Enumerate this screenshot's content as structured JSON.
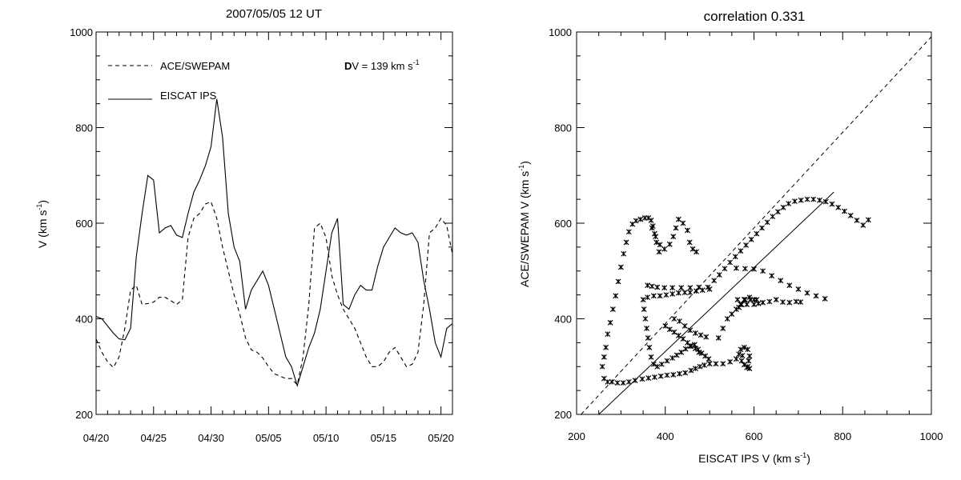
{
  "chart_data": [
    {
      "type": "line",
      "title": "2007/05/05 12 UT",
      "xlabel": "",
      "ylabel": "V (km s",
      "ylabel_sup": "-1",
      "ylabel_end": ")",
      "xlim": [
        "2007-04-20",
        "2007-05-21"
      ],
      "ylim": [
        200,
        1000
      ],
      "x_ticks": [
        "04/20",
        "04/25",
        "04/30",
        "05/05",
        "05/10",
        "05/15",
        "05/20"
      ],
      "y_ticks": [
        "200",
        "400",
        "600",
        "800",
        "1000"
      ],
      "grid": false,
      "legend_position": "top-left",
      "annotation": {
        "bold": "D",
        "text": "V = 139 km s",
        "sup": "-1"
      },
      "series": [
        {
          "name": "ACE/SWEPAM",
          "style": "dashed",
          "x": [
            "2007-04-20T00",
            "2007-04-20T12",
            "2007-04-21T00",
            "2007-04-21T12",
            "2007-04-22T00",
            "2007-04-22T12",
            "2007-04-23T00",
            "2007-04-23T12",
            "2007-04-24T00",
            "2007-04-24T12",
            "2007-04-25T00",
            "2007-04-25T12",
            "2007-04-26T00",
            "2007-04-26T12",
            "2007-04-27T00",
            "2007-04-27T12",
            "2007-04-28T00",
            "2007-04-28T12",
            "2007-04-29T00",
            "2007-04-29T12",
            "2007-04-30T00",
            "2007-04-30T12",
            "2007-05-01T00",
            "2007-05-01T12",
            "2007-05-02T00",
            "2007-05-02T12",
            "2007-05-03T00",
            "2007-05-03T12",
            "2007-05-04T00",
            "2007-05-04T12",
            "2007-05-05T00",
            "2007-05-05T12",
            "2007-05-06T00",
            "2007-05-06T12",
            "2007-05-07T00",
            "2007-05-07T12",
            "2007-05-08T00",
            "2007-05-08T12",
            "2007-05-09T00",
            "2007-05-09T12",
            "2007-05-10T00",
            "2007-05-10T12",
            "2007-05-11T00",
            "2007-05-11T12",
            "2007-05-12T00",
            "2007-05-12T12",
            "2007-05-13T00",
            "2007-05-13T12",
            "2007-05-14T00",
            "2007-05-14T12",
            "2007-05-15T00",
            "2007-05-15T12",
            "2007-05-16T00",
            "2007-05-16T12",
            "2007-05-17T00",
            "2007-05-17T12",
            "2007-05-18T00",
            "2007-05-18T12",
            "2007-05-19T00",
            "2007-05-19T12",
            "2007-05-20T00",
            "2007-05-20T12",
            "2007-05-21T00"
          ],
          "y": [
            358,
            330,
            310,
            298,
            320,
            380,
            460,
            470,
            430,
            432,
            435,
            445,
            445,
            438,
            430,
            440,
            570,
            610,
            620,
            640,
            645,
            610,
            550,
            500,
            450,
            410,
            360,
            335,
            330,
            318,
            300,
            285,
            280,
            275,
            275,
            262,
            320,
            430,
            590,
            600,
            570,
            490,
            450,
            420,
            400,
            380,
            350,
            320,
            300,
            300,
            310,
            330,
            340,
            320,
            300,
            305,
            330,
            430,
            580,
            590,
            610,
            595,
            535
          ]
        },
        {
          "name": "EISCAT IPS",
          "style": "solid",
          "x": [
            "2007-04-20T00",
            "2007-04-20T12",
            "2007-04-21T00",
            "2007-04-21T12",
            "2007-04-22T00",
            "2007-04-22T12",
            "2007-04-23T00",
            "2007-04-23T12",
            "2007-04-24T00",
            "2007-04-24T12",
            "2007-04-25T00",
            "2007-04-25T12",
            "2007-04-26T00",
            "2007-04-26T12",
            "2007-04-27T00",
            "2007-04-27T12",
            "2007-04-28T00",
            "2007-04-28T12",
            "2007-04-29T00",
            "2007-04-29T12",
            "2007-04-30T00",
            "2007-04-30T12",
            "2007-05-01T00",
            "2007-05-01T12",
            "2007-05-02T00",
            "2007-05-02T12",
            "2007-05-03T00",
            "2007-05-03T12",
            "2007-05-04T00",
            "2007-05-04T12",
            "2007-05-05T00",
            "2007-05-05T12",
            "2007-05-06T00",
            "2007-05-06T12",
            "2007-05-07T00",
            "2007-05-07T12",
            "2007-05-08T00",
            "2007-05-08T12",
            "2007-05-09T00",
            "2007-05-09T12",
            "2007-05-10T00",
            "2007-05-10T12",
            "2007-05-11T00",
            "2007-05-11T12",
            "2007-05-12T00",
            "2007-05-12T12",
            "2007-05-13T00",
            "2007-05-13T12",
            "2007-05-14T00",
            "2007-05-14T12",
            "2007-05-15T00",
            "2007-05-15T12",
            "2007-05-16T00",
            "2007-05-16T12",
            "2007-05-17T00",
            "2007-05-17T12",
            "2007-05-18T00",
            "2007-05-18T12",
            "2007-05-19T00",
            "2007-05-19T12",
            "2007-05-20T00",
            "2007-05-20T12",
            "2007-05-21T00"
          ],
          "y": [
            405,
            400,
            385,
            370,
            358,
            356,
            380,
            530,
            620,
            700,
            690,
            580,
            590,
            595,
            575,
            570,
            620,
            665,
            690,
            720,
            760,
            860,
            780,
            620,
            550,
            520,
            420,
            460,
            480,
            500,
            470,
            420,
            370,
            320,
            300,
            260,
            300,
            340,
            370,
            420,
            500,
            580,
            610,
            430,
            420,
            450,
            470,
            460,
            460,
            510,
            550,
            570,
            590,
            580,
            575,
            580,
            560,
            480,
            420,
            350,
            320,
            380,
            390
          ]
        }
      ]
    },
    {
      "type": "scatter",
      "title": "correlation 0.331",
      "xlabel": "EISCAT IPS V (km s",
      "xlabel_sup": "-1",
      "xlabel_end": ")",
      "ylabel": "ACE/SWEPAM V (km s",
      "ylabel_sup": "-1",
      "ylabel_end": ")",
      "xlim": [
        200,
        1000
      ],
      "ylim": [
        200,
        1000
      ],
      "x_ticks": [
        "200",
        "400",
        "600",
        "800",
        "1000"
      ],
      "y_ticks": [
        "200",
        "400",
        "600",
        "800",
        "1000"
      ],
      "grid": false,
      "marker": "asterisk",
      "reference_lines": [
        {
          "style": "dashed",
          "points": [
            [
              210,
              200
            ],
            [
              1000,
              990
            ]
          ]
        },
        {
          "style": "solid",
          "points": [
            [
              250,
              200
            ],
            [
              780,
              665
            ]
          ]
        }
      ],
      "points": [
        [
          262,
          275
        ],
        [
          270,
          268
        ],
        [
          280,
          268
        ],
        [
          292,
          266
        ],
        [
          305,
          266
        ],
        [
          318,
          268
        ],
        [
          332,
          271
        ],
        [
          348,
          274
        ],
        [
          362,
          276
        ],
        [
          376,
          278
        ],
        [
          390,
          280
        ],
        [
          404,
          282
        ],
        [
          418,
          283
        ],
        [
          432,
          285
        ],
        [
          445,
          287
        ],
        [
          458,
          292
        ],
        [
          468,
          296
        ],
        [
          478,
          300
        ],
        [
          488,
          303
        ],
        [
          500,
          306
        ],
        [
          514,
          306
        ],
        [
          530,
          306
        ],
        [
          546,
          310
        ],
        [
          560,
          316
        ],
        [
          574,
          323
        ],
        [
          258,
          300
        ],
        [
          262,
          320
        ],
        [
          266,
          340
        ],
        [
          270,
          368
        ],
        [
          276,
          392
        ],
        [
          282,
          420
        ],
        [
          288,
          448
        ],
        [
          294,
          478
        ],
        [
          300,
          508
        ],
        [
          306,
          536
        ],
        [
          312,
          560
        ],
        [
          318,
          582
        ],
        [
          326,
          598
        ],
        [
          334,
          605
        ],
        [
          344,
          608
        ],
        [
          354,
          611
        ],
        [
          362,
          611
        ],
        [
          368,
          606
        ],
        [
          372,
          594
        ],
        [
          376,
          578
        ],
        [
          380,
          560
        ],
        [
          386,
          540
        ],
        [
          370,
          590
        ],
        [
          378,
          572
        ],
        [
          388,
          555
        ],
        [
          398,
          546
        ],
        [
          410,
          556
        ],
        [
          418,
          572
        ],
        [
          424,
          590
        ],
        [
          430,
          608
        ],
        [
          440,
          600
        ],
        [
          450,
          585
        ],
        [
          455,
          560
        ],
        [
          462,
          546
        ],
        [
          470,
          540
        ],
        [
          360,
          470
        ],
        [
          370,
          468
        ],
        [
          382,
          466
        ],
        [
          398,
          465
        ],
        [
          416,
          465
        ],
        [
          436,
          465
        ],
        [
          456,
          465
        ],
        [
          476,
          466
        ],
        [
          496,
          466
        ],
        [
          350,
          440
        ],
        [
          352,
          420
        ],
        [
          355,
          400
        ],
        [
          358,
          380
        ],
        [
          361,
          360
        ],
        [
          364,
          340
        ],
        [
          368,
          320
        ],
        [
          374,
          305
        ],
        [
          382,
          300
        ],
        [
          392,
          305
        ],
        [
          404,
          312
        ],
        [
          416,
          318
        ],
        [
          426,
          324
        ],
        [
          436,
          330
        ],
        [
          446,
          337
        ],
        [
          456,
          343
        ],
        [
          466,
          346
        ],
        [
          474,
          336
        ],
        [
          482,
          328
        ],
        [
          490,
          322
        ],
        [
          498,
          316
        ],
        [
          360,
          445
        ],
        [
          374,
          448
        ],
        [
          388,
          448
        ],
        [
          402,
          450
        ],
        [
          416,
          452
        ],
        [
          430,
          454
        ],
        [
          444,
          455
        ],
        [
          456,
          455
        ],
        [
          470,
          458
        ],
        [
          484,
          460
        ],
        [
          500,
          462
        ],
        [
          400,
          385
        ],
        [
          410,
          378
        ],
        [
          420,
          372
        ],
        [
          430,
          365
        ],
        [
          440,
          358
        ],
        [
          450,
          350
        ],
        [
          458,
          343
        ],
        [
          468,
          338
        ],
        [
          476,
          330
        ],
        [
          420,
          400
        ],
        [
          432,
          395
        ],
        [
          444,
          385
        ],
        [
          456,
          376
        ],
        [
          468,
          370
        ],
        [
          480,
          366
        ],
        [
          492,
          362
        ],
        [
          520,
          360
        ],
        [
          530,
          380
        ],
        [
          540,
          400
        ],
        [
          550,
          410
        ],
        [
          560,
          420
        ],
        [
          570,
          430
        ],
        [
          580,
          440
        ],
        [
          590,
          445
        ],
        [
          600,
          440
        ],
        [
          610,
          432
        ],
        [
          620,
          434
        ],
        [
          635,
          436
        ],
        [
          650,
          440
        ],
        [
          665,
          435
        ],
        [
          680,
          434
        ],
        [
          695,
          436
        ],
        [
          705,
          435
        ],
        [
          563,
          440
        ],
        [
          566,
          424
        ],
        [
          572,
          430
        ],
        [
          578,
          440
        ],
        [
          584,
          430
        ],
        [
          592,
          440
        ],
        [
          600,
          430
        ],
        [
          606,
          440
        ],
        [
          510,
          480
        ],
        [
          522,
          492
        ],
        [
          534,
          505
        ],
        [
          546,
          518
        ],
        [
          558,
          530
        ],
        [
          570,
          542
        ],
        [
          582,
          554
        ],
        [
          594,
          566
        ],
        [
          606,
          578
        ],
        [
          618,
          590
        ],
        [
          630,
          602
        ],
        [
          642,
          614
        ],
        [
          654,
          624
        ],
        [
          666,
          633
        ],
        [
          678,
          641
        ],
        [
          692,
          646
        ],
        [
          706,
          648
        ],
        [
          720,
          650
        ],
        [
          734,
          650
        ],
        [
          748,
          648
        ],
        [
          762,
          645
        ],
        [
          776,
          640
        ],
        [
          790,
          633
        ],
        [
          804,
          625
        ],
        [
          818,
          616
        ],
        [
          832,
          606
        ],
        [
          846,
          596
        ],
        [
          858,
          607
        ],
        [
          586,
          300
        ],
        [
          588,
          312
        ],
        [
          590,
          322
        ],
        [
          586,
          336
        ],
        [
          578,
          340
        ],
        [
          570,
          336
        ],
        [
          566,
          326
        ],
        [
          572,
          312
        ],
        [
          578,
          304
        ],
        [
          584,
          298
        ],
        [
          590,
          296
        ],
        [
          560,
          506
        ],
        [
          580,
          505
        ],
        [
          600,
          504
        ],
        [
          620,
          500
        ],
        [
          640,
          490
        ],
        [
          660,
          480
        ],
        [
          680,
          470
        ],
        [
          700,
          462
        ],
        [
          720,
          454
        ],
        [
          740,
          448
        ],
        [
          760,
          442
        ]
      ]
    }
  ]
}
